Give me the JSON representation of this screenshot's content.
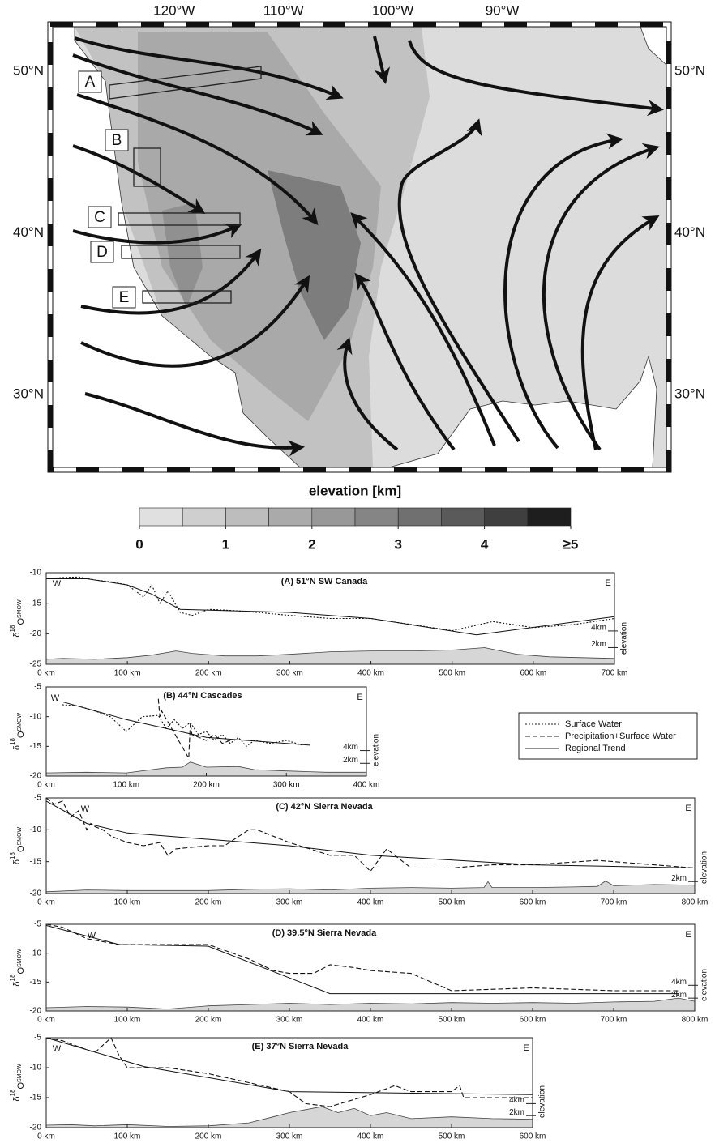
{
  "map": {
    "lon_ticks": [
      {
        "value": -120,
        "label": "120°W"
      },
      {
        "value": -110,
        "label": "110°W"
      },
      {
        "value": -100,
        "label": "100°W"
      },
      {
        "value": -90,
        "label": "90°W"
      }
    ],
    "lat_ticks": [
      {
        "value": 50,
        "label": "50°N"
      },
      {
        "value": 40,
        "label": "40°N"
      },
      {
        "value": 30,
        "label": "30°N"
      }
    ],
    "xlim": [
      -131.1,
      -75
    ],
    "ylim": [
      25.5,
      52.75
    ],
    "regions": [
      "A",
      "B",
      "C",
      "D",
      "E"
    ]
  },
  "colorbar": {
    "title": "elevation [km]",
    "lim": [
      0,
      5
    ],
    "ticks": [
      0,
      1,
      2,
      3,
      4,
      {
        "value": 5,
        "label": "≥5"
      }
    ],
    "colors": [
      "#e0e0e0",
      "#cfcfcf",
      "#bdbdbd",
      "#aaaaaa",
      "#989898",
      "#858585",
      "#707070",
      "#5a5a5a",
      "#3f3f3f",
      "#1e1e1e"
    ]
  },
  "legend": {
    "entries": [
      {
        "name": "Surface Water",
        "style": "dotted"
      },
      {
        "name": "Precipitation+Surface Water",
        "style": "dashed"
      },
      {
        "name": "Regional Trend",
        "style": "solid"
      }
    ]
  },
  "chart_data": [
    {
      "type": "line",
      "title": "(A)  51°N SW Canada",
      "west_label": "W",
      "east_label": "E",
      "ylabel": [
        "δ",
        "18",
        "O",
        "SMOW"
      ],
      "y2label": "elevation",
      "xlim": [
        0,
        700
      ],
      "xticks": [
        {
          "value": 0,
          "label": "0 km"
        },
        {
          "value": 100,
          "label": "100 km"
        },
        {
          "value": 200,
          "label": "200 km"
        },
        {
          "value": 300,
          "label": "300 km"
        },
        {
          "value": 400,
          "label": "400  km"
        },
        {
          "value": 500,
          "label": "500 km"
        },
        {
          "value": 600,
          "label": "600 km"
        },
        {
          "value": 700,
          "label": "700 km"
        }
      ],
      "ylim": [
        -25,
        -10
      ],
      "yticks": [
        -10,
        -15,
        -20,
        -25
      ],
      "y2lim": [
        0,
        11
      ],
      "y2ticks": [
        {
          "value": 2,
          "label": "2km"
        },
        {
          "value": 4,
          "label": "4km"
        }
      ],
      "series": [
        {
          "style": "dotted",
          "x": [
            0,
            20,
            40,
            60,
            80,
            100,
            120,
            130,
            140,
            150,
            165,
            180,
            200,
            230,
            260,
            300,
            350,
            400,
            450,
            500,
            550,
            600,
            650,
            700
          ],
          "values": [
            -11,
            -10.8,
            -10.7,
            -11.2,
            -11.5,
            -12,
            -14,
            -12,
            -15,
            -13,
            -16.5,
            -17,
            -16,
            -16.2,
            -16.5,
            -17,
            -17.5,
            -17.5,
            -18.5,
            -19.5,
            -18,
            -19,
            -18.5,
            -17.5
          ]
        },
        {
          "style": "solid",
          "x": [
            0,
            50,
            100,
            130,
            165,
            300,
            400,
            530,
            700
          ],
          "values": [
            -11,
            -11,
            -12,
            -13.5,
            -16,
            -16.5,
            -17.5,
            -20.2,
            -17.2
          ]
        },
        {
          "style": "area",
          "axis": "y2",
          "x": [
            0,
            20,
            60,
            100,
            130,
            160,
            180,
            220,
            260,
            300,
            350,
            400,
            450,
            500,
            540,
            580,
            620,
            660,
            700
          ],
          "values": [
            0.6,
            0.7,
            0.6,
            0.8,
            1.1,
            1.6,
            1.3,
            1.0,
            1.0,
            1.2,
            1.5,
            1.6,
            1.6,
            1.7,
            2.0,
            1.2,
            0.9,
            0.8,
            0.7
          ]
        }
      ]
    },
    {
      "type": "line",
      "title": "(B)  44°N Cascades",
      "west_label": "W",
      "east_label": "E",
      "ylabel": [
        "δ",
        "18",
        "O",
        "SMOW"
      ],
      "y2label": "elevation",
      "xlim": [
        0,
        400
      ],
      "xticks": [
        {
          "value": 0,
          "label": "0 km"
        },
        {
          "value": 100,
          "label": "100 km"
        },
        {
          "value": 200,
          "label": "200 km"
        },
        {
          "value": 300,
          "label": "300 km"
        },
        {
          "value": 400,
          "label": "400 km"
        }
      ],
      "ylim": [
        -20,
        -5
      ],
      "yticks": [
        -5,
        -10,
        -15,
        -20
      ],
      "y2lim": [
        0,
        14
      ],
      "y2ticks": [
        {
          "value": 2,
          "label": "2km"
        },
        {
          "value": 4,
          "label": "4km"
        }
      ],
      "series": [
        {
          "style": "dotted",
          "x": [
            20,
            40,
            60,
            80,
            100,
            120,
            140,
            150,
            160,
            170,
            180,
            190,
            200,
            210,
            220,
            230,
            240,
            250,
            260,
            280,
            300,
            320
          ],
          "values": [
            -8,
            -8.2,
            -9,
            -10,
            -12.5,
            -10,
            -9.8,
            -12,
            -10.5,
            -12,
            -11,
            -13,
            -12.5,
            -14,
            -13,
            -14.5,
            -13.5,
            -15,
            -14,
            -14.5,
            -14,
            -14.8
          ]
        },
        {
          "style": "dashed",
          "x": [
            140,
            142,
            144,
            178,
            180,
            182,
            200,
            210,
            220,
            230
          ],
          "values": [
            -7,
            -10,
            -9,
            -17,
            -11,
            -13,
            -14,
            -13,
            -14.5,
            -14
          ]
        },
        {
          "style": "solid",
          "x": [
            20,
            100,
            200,
            330
          ],
          "values": [
            -7.5,
            -10.5,
            -13.5,
            -14.8
          ]
        },
        {
          "style": "area",
          "axis": "y2",
          "x": [
            0,
            50,
            100,
            150,
            170,
            180,
            200,
            240,
            260,
            300,
            350,
            400
          ],
          "values": [
            0.5,
            0.6,
            0.5,
            1.3,
            1.4,
            2.2,
            1.4,
            1.5,
            1.0,
            0.8,
            0.6,
            0.6
          ]
        }
      ]
    },
    {
      "type": "line",
      "title": "(C)  42°N Sierra Nevada",
      "west_label": "W",
      "east_label": "E",
      "ylabel": [
        "δ",
        "18",
        "O",
        "SMOW"
      ],
      "y2label": "elevation",
      "xlim": [
        0,
        800
      ],
      "xticks": [
        {
          "value": 0,
          "label": "0 km"
        },
        {
          "value": 100,
          "label": "100 km"
        },
        {
          "value": 200,
          "label": "200 km"
        },
        {
          "value": 300,
          "label": "300 km"
        },
        {
          "value": 400,
          "label": "400 km"
        },
        {
          "value": 500,
          "label": "500 km"
        },
        {
          "value": 600,
          "label": "600 km"
        },
        {
          "value": 700,
          "label": "700 km"
        },
        {
          "value": 800,
          "label": "800 km"
        }
      ],
      "ylim": [
        -20,
        -5
      ],
      "yticks": [
        -5,
        -10,
        -15,
        -20
      ],
      "y2lim": [
        0,
        16
      ],
      "y2ticks": [
        {
          "value": 2,
          "label": "2km"
        }
      ],
      "series": [
        {
          "style": "dashed",
          "x": [
            0,
            10,
            20,
            30,
            40,
            50,
            55,
            60,
            70,
            80,
            100,
            120,
            140,
            150,
            160,
            200,
            220,
            250,
            260,
            300,
            350,
            380,
            400,
            420,
            450,
            500,
            550,
            600,
            680,
            750,
            800
          ],
          "values": [
            -5,
            -6,
            -5.5,
            -8,
            -7,
            -10,
            -9,
            -9.5,
            -10,
            -11,
            -12,
            -12.5,
            -12,
            -14,
            -13,
            -12.5,
            -12.5,
            -10,
            -10,
            -12,
            -14,
            -14,
            -16.5,
            -13,
            -16,
            -16,
            -15.5,
            -15.5,
            -14.8,
            -15.5,
            -16
          ]
        },
        {
          "style": "solid",
          "x": [
            0,
            50,
            100,
            300,
            400,
            600,
            800
          ],
          "values": [
            -5.5,
            -9,
            -10.5,
            -12.5,
            -14,
            -15.5,
            -16
          ]
        },
        {
          "style": "area",
          "axis": "y2",
          "x": [
            0,
            50,
            100,
            150,
            200,
            250,
            300,
            350,
            400,
            450,
            500,
            540,
            545,
            550,
            600,
            650,
            680,
            690,
            700,
            750,
            800
          ],
          "values": [
            0.3,
            0.6,
            0.5,
            0.5,
            0.5,
            0.7,
            0.8,
            0.6,
            0.9,
            1.0,
            0.9,
            1.0,
            2.0,
            1.0,
            1.0,
            1.1,
            1.2,
            2.1,
            1.3,
            1.5,
            1.4
          ]
        }
      ]
    },
    {
      "type": "line",
      "title": "(D)  39.5°N Sierra Nevada",
      "west_label": "W",
      "east_label": "E",
      "ylabel": [
        "δ",
        "18",
        "O",
        "SMOW"
      ],
      "y2label": "elevation",
      "xlim": [
        0,
        800
      ],
      "xticks": [
        {
          "value": 0,
          "label": "0 km"
        },
        {
          "value": 100,
          "label": "100 km"
        },
        {
          "value": 200,
          "label": "200 km"
        },
        {
          "value": 300,
          "label": "300 km"
        },
        {
          "value": 400,
          "label": "400 km"
        },
        {
          "value": 500,
          "label": "500 km"
        },
        {
          "value": 600,
          "label": "600 km"
        },
        {
          "value": 700,
          "label": "700 km"
        },
        {
          "value": 800,
          "label": "800 km"
        }
      ],
      "ylim": [
        -20,
        -5
      ],
      "yticks": [
        -5,
        -10,
        -15,
        -20
      ],
      "y2lim": [
        0,
        13.5
      ],
      "y2ticks": [
        {
          "value": 2,
          "label": "2km"
        },
        {
          "value": 4,
          "label": "4km"
        }
      ],
      "series": [
        {
          "style": "dashed",
          "x": [
            0,
            20,
            50,
            90,
            150,
            200,
            250,
            280,
            300,
            330,
            350,
            380,
            400,
            450,
            500,
            600,
            700,
            780
          ],
          "values": [
            -5,
            -5.5,
            -7.5,
            -8.5,
            -8.5,
            -8.5,
            -11,
            -13,
            -13.5,
            -13.5,
            -12,
            -12.5,
            -13,
            -13.5,
            -16.5,
            -16,
            -16.5,
            -16.5
          ]
        },
        {
          "style": "solid",
          "x": [
            0,
            90,
            200,
            350,
            780
          ],
          "values": [
            -5.2,
            -8.5,
            -8.8,
            -17,
            -17
          ]
        },
        {
          "style": "area",
          "axis": "y2",
          "x": [
            0,
            50,
            100,
            150,
            200,
            250,
            300,
            350,
            400,
            450,
            500,
            550,
            600,
            650,
            700,
            750,
            780,
            800
          ],
          "values": [
            0.5,
            0.7,
            0.6,
            0.3,
            0.8,
            1.0,
            1.2,
            1.0,
            1.2,
            1.1,
            1.3,
            1.2,
            1.3,
            1.2,
            1.4,
            1.5,
            2.0,
            1.5
          ]
        }
      ]
    },
    {
      "type": "line",
      "title": "(E)  37°N Sierra Nevada",
      "west_label": "W",
      "east_label": "E",
      "ylabel": [
        "δ",
        "18",
        "O",
        "SMOW"
      ],
      "y2label": "elevation",
      "xlim": [
        0,
        600
      ],
      "xticks": [
        {
          "value": 0,
          "label": "0 km"
        },
        {
          "value": 100,
          "label": "100 km"
        },
        {
          "value": 200,
          "label": "200 km"
        },
        {
          "value": 300,
          "label": "300 km"
        },
        {
          "value": 400,
          "label": "400 km"
        },
        {
          "value": 500,
          "label": "500 km"
        },
        {
          "value": 600,
          "label": "600 km"
        }
      ],
      "ylim": [
        -20,
        -5
      ],
      "yticks": [
        -5,
        -10,
        -15,
        -20
      ],
      "y2lim": [
        0,
        15
      ],
      "y2ticks": [
        {
          "value": 2,
          "label": "2km"
        },
        {
          "value": 4,
          "label": "4km"
        }
      ],
      "series": [
        {
          "style": "dashed",
          "x": [
            0,
            20,
            40,
            60,
            80,
            90,
            100,
            150,
            200,
            250,
            300,
            320,
            350,
            400,
            430,
            450,
            500,
            510,
            515,
            600
          ],
          "values": [
            -5,
            -5.5,
            -6.5,
            -7.5,
            -5,
            -8,
            -10,
            -10,
            -11,
            -12.5,
            -14,
            -16,
            -16.5,
            -14.5,
            -13,
            -14,
            -14,
            -13,
            -15,
            -15
          ]
        },
        {
          "style": "solid",
          "x": [
            0,
            120,
            300,
            600
          ],
          "values": [
            -5,
            -9.8,
            -14,
            -14.5
          ]
        },
        {
          "style": "area",
          "axis": "y2",
          "x": [
            0,
            30,
            60,
            100,
            150,
            200,
            250,
            280,
            300,
            320,
            340,
            360,
            380,
            400,
            420,
            450,
            500,
            550,
            600
          ],
          "values": [
            0.4,
            0.5,
            0.3,
            0.5,
            0.2,
            0.3,
            0.8,
            1.8,
            2.5,
            3.0,
            3.5,
            2.5,
            3.2,
            2.0,
            2.5,
            1.5,
            1.8,
            1.5,
            1.4
          ]
        }
      ]
    }
  ]
}
